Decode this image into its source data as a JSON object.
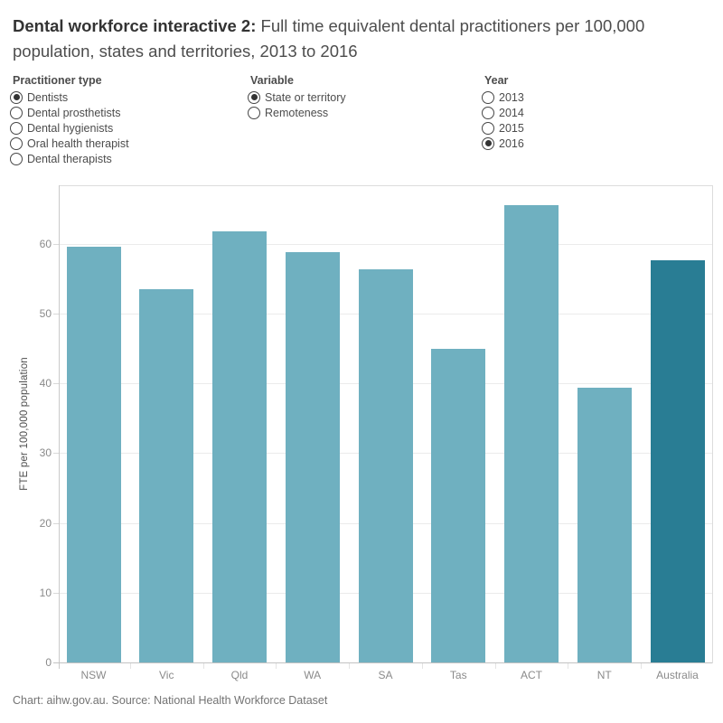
{
  "title": {
    "bold": "Dental workforce interactive 2:",
    "rest": "Full time equivalent dental practitioners per 100,000 population, states and territories, 2013 to 2016"
  },
  "controls": [
    {
      "label": "Practitioner type",
      "options": [
        "Dentists",
        "Dental prosthetists",
        "Dental hygienists",
        "Oral health therapist",
        "Dental therapists"
      ],
      "selected": "Dentists"
    },
    {
      "label": "Variable",
      "options": [
        "State or territory",
        "Remoteness"
      ],
      "selected": "State or territory"
    },
    {
      "label": "Year",
      "options": [
        "2013",
        "2014",
        "2015",
        "2016"
      ],
      "selected": "2016"
    }
  ],
  "chart_data": {
    "type": "bar",
    "title": "",
    "categories": [
      "NSW",
      "Vic",
      "Qld",
      "WA",
      "SA",
      "Tas",
      "ACT",
      "NT",
      "Australia"
    ],
    "values": [
      59.6,
      53.5,
      61.8,
      58.8,
      56.3,
      44.9,
      65.6,
      39.4,
      57.7
    ],
    "xlabel": "",
    "ylabel": "FTE per 100,000 population",
    "yticks": [
      0,
      10,
      20,
      30,
      40,
      50,
      60
    ],
    "ylim": [
      0,
      68.4
    ],
    "grid": true,
    "legend": false,
    "bar_color": "#6fb0c0",
    "highlight_color": "#297d94",
    "highlight_category": "Australia",
    "axis_text_color": "#8a8a8a",
    "gridline_color": "#ebebeb"
  },
  "footer": "Chart: aihw.gov.au. Source: National Health Workforce Dataset"
}
